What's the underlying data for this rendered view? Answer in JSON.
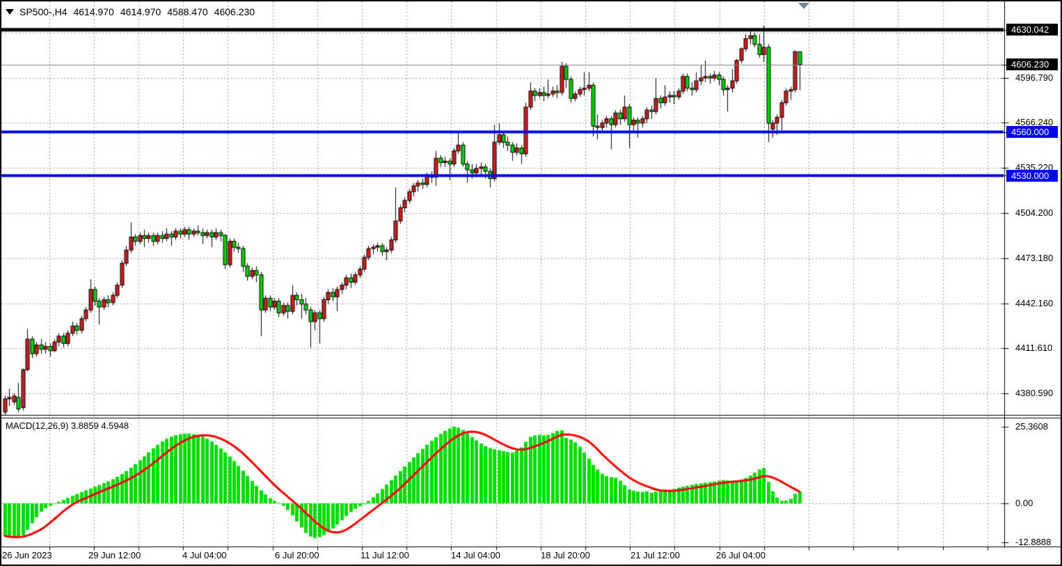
{
  "header": {
    "symbol_period": "SP500-,H4",
    "open": "4614.970",
    "high": "4614.970",
    "low": "4588.470",
    "close": "4606.230"
  },
  "indicator": {
    "label": "MACD(12,26,9)",
    "main_value": "3.8859",
    "signal_value": "4.5948",
    "axis_labels": [
      {
        "text": "25.3608",
        "value": 25.3608
      },
      {
        "text": "0.00",
        "value": 0
      },
      {
        "text": "-12.8888",
        "value": -12.8888
      }
    ]
  },
  "price_axis": {
    "labels": [
      {
        "text": "4630.042",
        "price": 4630.042,
        "style": "black"
      },
      {
        "text": "4606.230",
        "price": 4606.23,
        "style": "black"
      },
      {
        "text": "4596.790",
        "price": 4596.79,
        "style": "plain"
      },
      {
        "text": "4566.240",
        "price": 4566.24,
        "style": "plain"
      },
      {
        "text": "4560.000",
        "price": 4560.0,
        "style": "blue"
      },
      {
        "text": "4535.220",
        "price": 4535.22,
        "style": "plain"
      },
      {
        "text": "4530.000",
        "price": 4530.0,
        "style": "blue"
      },
      {
        "text": "4504.200",
        "price": 4504.2,
        "style": "plain"
      },
      {
        "text": "4473.180",
        "price": 4473.18,
        "style": "plain"
      },
      {
        "text": "4442.160",
        "price": 4442.16,
        "style": "plain"
      },
      {
        "text": "4411.610",
        "price": 4411.61,
        "style": "plain"
      },
      {
        "text": "4380.590",
        "price": 4380.59,
        "style": "plain"
      }
    ]
  },
  "time_axis": {
    "labels": [
      "26 Jun 2023",
      "29 Jun 12:00",
      "4 Jul 04:00",
      "6 Jul 20:00",
      "11 Jul 12:00",
      "14 Jul 04:00",
      "18 Jul 20:00",
      "21 Jul 12:00",
      "26 Jul 04:00"
    ]
  },
  "colors": {
    "background": "#ffffff",
    "grid": "#8d9aa8",
    "bull_candle": "#cc1e1e",
    "bear_candle": "#00d400",
    "candle_outline": "#000000",
    "resistance_line": "#000000",
    "support_line": "#0202f0",
    "last_price_line": "#808080",
    "macd_histogram": "#00dc00",
    "macd_signal": "#ff0000",
    "axis_text": "#000000"
  },
  "levels": {
    "black_line": 4630.042,
    "blue_lines": [
      4560.0,
      4530.0
    ],
    "last_price": 4606.23
  },
  "chart_data": {
    "type": "candlestick+macd",
    "symbol": "SP500-",
    "timeframe": "H4",
    "price_range_visible": [
      4365,
      4636
    ],
    "grid_prices": [
      4627.81,
      4596.79,
      4566.24,
      4535.22,
      4504.2,
      4473.18,
      4442.16,
      4411.61,
      4380.59
    ],
    "macd_range_visible": [
      -14.0,
      28.2
    ],
    "candles": [
      [
        4368,
        4379,
        4366,
        4377
      ],
      [
        4377,
        4384,
        4372,
        4378
      ],
      [
        4375,
        4381,
        4373,
        4379
      ],
      [
        4378,
        4388,
        4368,
        4370
      ],
      [
        4371,
        4398,
        4369,
        4397
      ],
      [
        4397,
        4425,
        4396,
        4418
      ],
      [
        4418,
        4420,
        4405,
        4408
      ],
      [
        4408,
        4416,
        4406,
        4414
      ],
      [
        4414,
        4418,
        4408,
        4411
      ],
      [
        4411,
        4416,
        4408,
        4413
      ],
      [
        4413,
        4415,
        4406,
        4410
      ],
      [
        4410,
        4418,
        4409,
        4416
      ],
      [
        4416,
        4422,
        4413,
        4420
      ],
      [
        4420,
        4422,
        4412,
        4415
      ],
      [
        4415,
        4424,
        4413,
        4422
      ],
      [
        4422,
        4430,
        4420,
        4427
      ],
      [
        4427,
        4429,
        4421,
        4424
      ],
      [
        4424,
        4434,
        4422,
        4432
      ],
      [
        4432,
        4440,
        4430,
        4438
      ],
      [
        4438,
        4459,
        4436,
        4452
      ],
      [
        4452,
        4454,
        4441,
        4444
      ],
      [
        4444,
        4446,
        4428,
        4440
      ],
      [
        4440,
        4447,
        4438,
        4445
      ],
      [
        4445,
        4448,
        4440,
        4443
      ],
      [
        4443,
        4450,
        4441,
        4448
      ],
      [
        4448,
        4457,
        4446,
        4455
      ],
      [
        4455,
        4472,
        4453,
        4470
      ],
      [
        4470,
        4482,
        4468,
        4479
      ],
      [
        4479,
        4498,
        4477,
        4488
      ],
      [
        4488,
        4490,
        4482,
        4485
      ],
      [
        4485,
        4491,
        4483,
        4489
      ],
      [
        4489,
        4493,
        4481,
        4487
      ],
      [
        4487,
        4491,
        4484,
        4489
      ],
      [
        4489,
        4491,
        4482,
        4485
      ],
      [
        4485,
        4491,
        4483,
        4489
      ],
      [
        4489,
        4492,
        4484,
        4487
      ],
      [
        4487,
        4494,
        4485,
        4490
      ],
      [
        4490,
        4492,
        4482,
        4488
      ],
      [
        4488,
        4494,
        4486,
        4492
      ],
      [
        4492,
        4494,
        4487,
        4490
      ],
      [
        4490,
        4495,
        4488,
        4493
      ],
      [
        4493,
        4495,
        4486,
        4490
      ],
      [
        4490,
        4494,
        4488,
        4492
      ],
      [
        4492,
        4496,
        4489,
        4491
      ],
      [
        4491,
        4494,
        4483,
        4489
      ],
      [
        4489,
        4493,
        4487,
        4491
      ],
      [
        4491,
        4493,
        4481,
        4488
      ],
      [
        4488,
        4494,
        4486,
        4491
      ],
      [
        4491,
        4493,
        4485,
        4489
      ],
      [
        4489,
        4490,
        4466,
        4469
      ],
      [
        4469,
        4487,
        4467,
        4485
      ],
      [
        4485,
        4487,
        4478,
        4481
      ],
      [
        4481,
        4484,
        4477,
        4480
      ],
      [
        4480,
        4482,
        4464,
        4468
      ],
      [
        4468,
        4470,
        4458,
        4461
      ],
      [
        4461,
        4467,
        4459,
        4465
      ],
      [
        4465,
        4468,
        4457,
        4462
      ],
      [
        4462,
        4464,
        4420,
        4438
      ],
      [
        4438,
        4448,
        4436,
        4446
      ],
      [
        4446,
        4448,
        4437,
        4440
      ],
      [
        4440,
        4446,
        4438,
        4444
      ],
      [
        4444,
        4446,
        4433,
        4436
      ],
      [
        4436,
        4443,
        4434,
        4441
      ],
      [
        4441,
        4443,
        4432,
        4437
      ],
      [
        4437,
        4455,
        4435,
        4448
      ],
      [
        4448,
        4450,
        4441,
        4445
      ],
      [
        4445,
        4449,
        4432,
        4442
      ],
      [
        4442,
        4446,
        4435,
        4438
      ],
      [
        4438,
        4440,
        4412,
        4430
      ],
      [
        4430,
        4438,
        4424,
        4436
      ],
      [
        4436,
        4438,
        4415,
        4432
      ],
      [
        4432,
        4447,
        4430,
        4445
      ],
      [
        4445,
        4452,
        4442,
        4450
      ],
      [
        4450,
        4453,
        4444,
        4447
      ],
      [
        4447,
        4454,
        4437,
        4452
      ],
      [
        4452,
        4457,
        4449,
        4455
      ],
      [
        4455,
        4462,
        4452,
        4460
      ],
      [
        4460,
        4463,
        4453,
        4457
      ],
      [
        4457,
        4464,
        4455,
        4462
      ],
      [
        4462,
        4468,
        4460,
        4466
      ],
      [
        4466,
        4476,
        4464,
        4474
      ],
      [
        4474,
        4482,
        4472,
        4480
      ],
      [
        4480,
        4483,
        4476,
        4481
      ],
      [
        4481,
        4484,
        4478,
        4482
      ],
      [
        4482,
        4484,
        4475,
        4478
      ],
      [
        4478,
        4481,
        4472,
        4479
      ],
      [
        4479,
        4488,
        4477,
        4486
      ],
      [
        4486,
        4522,
        4484,
        4499
      ],
      [
        4499,
        4510,
        4497,
        4508
      ],
      [
        4508,
        4515,
        4505,
        4513
      ],
      [
        4513,
        4521,
        4511,
        4519
      ],
      [
        4519,
        4525,
        4516,
        4523
      ],
      [
        4523,
        4527,
        4519,
        4525
      ],
      [
        4525,
        4528,
        4521,
        4524
      ],
      [
        4524,
        4532,
        4522,
        4530
      ],
      [
        4530,
        4533,
        4525,
        4529
      ],
      [
        4529,
        4547,
        4523,
        4542
      ],
      [
        4542,
        4544,
        4536,
        4539
      ],
      [
        4539,
        4543,
        4536,
        4540
      ],
      [
        4540,
        4542,
        4527,
        4538
      ],
      [
        4538,
        4549,
        4536,
        4547
      ],
      [
        4547,
        4560,
        4545,
        4551
      ],
      [
        4551,
        4553,
        4536,
        4538
      ],
      [
        4538,
        4540,
        4525,
        4534
      ],
      [
        4534,
        4538,
        4528,
        4532
      ],
      [
        4532,
        4538,
        4529,
        4535
      ],
      [
        4535,
        4539,
        4531,
        4536
      ],
      [
        4536,
        4538,
        4528,
        4533
      ],
      [
        4533,
        4535,
        4522,
        4528
      ],
      [
        4528,
        4565,
        4526,
        4553
      ],
      [
        4553,
        4566,
        4551,
        4558
      ],
      [
        4558,
        4560,
        4549,
        4553
      ],
      [
        4553,
        4557,
        4547,
        4551
      ],
      [
        4551,
        4553,
        4540,
        4546
      ],
      [
        4546,
        4552,
        4544,
        4549
      ],
      [
        4549,
        4551,
        4538,
        4545
      ],
      [
        4545,
        4580,
        4543,
        4577
      ],
      [
        4577,
        4594,
        4575,
        4588
      ],
      [
        4588,
        4590,
        4581,
        4585
      ],
      [
        4585,
        4590,
        4583,
        4587
      ],
      [
        4587,
        4591,
        4581,
        4585
      ],
      [
        4585,
        4596,
        4583,
        4586
      ],
      [
        4586,
        4591,
        4584,
        4588
      ],
      [
        4588,
        4592,
        4583,
        4587
      ],
      [
        4587,
        4608,
        4585,
        4605
      ],
      [
        4605,
        4607,
        4590,
        4596
      ],
      [
        4596,
        4598,
        4580,
        4583
      ],
      [
        4583,
        4588,
        4581,
        4586
      ],
      [
        4586,
        4591,
        4584,
        4589
      ],
      [
        4589,
        4601,
        4585,
        4590
      ],
      [
        4590,
        4601,
        4588,
        4592
      ],
      [
        4592,
        4594,
        4557,
        4564
      ],
      [
        4564,
        4572,
        4555,
        4563
      ],
      [
        4563,
        4568,
        4559,
        4566
      ],
      [
        4566,
        4571,
        4563,
        4569
      ],
      [
        4569,
        4571,
        4548,
        4565
      ],
      [
        4565,
        4575,
        4563,
        4573
      ],
      [
        4573,
        4575,
        4565,
        4569
      ],
      [
        4569,
        4585,
        4567,
        4577
      ],
      [
        4577,
        4579,
        4549,
        4565
      ],
      [
        4565,
        4570,
        4560,
        4568
      ],
      [
        4568,
        4570,
        4556,
        4566
      ],
      [
        4566,
        4571,
        4563,
        4569
      ],
      [
        4569,
        4577,
        4566,
        4575
      ],
      [
        4575,
        4578,
        4569,
        4574
      ],
      [
        4574,
        4597,
        4572,
        4583
      ],
      [
        4583,
        4585,
        4576,
        4580
      ],
      [
        4580,
        4592,
        4578,
        4584
      ],
      [
        4584,
        4588,
        4580,
        4585
      ],
      [
        4585,
        4588,
        4579,
        4584
      ],
      [
        4584,
        4590,
        4582,
        4588
      ],
      [
        4588,
        4600,
        4586,
        4598
      ],
      [
        4598,
        4600,
        4588,
        4590
      ],
      [
        4590,
        4594,
        4585,
        4589
      ],
      [
        4589,
        4601,
        4587,
        4595
      ],
      [
        4595,
        4606,
        4592,
        4597
      ],
      [
        4597,
        4609,
        4594,
        4598
      ],
      [
        4598,
        4600,
        4593,
        4597
      ],
      [
        4597,
        4602,
        4595,
        4599
      ],
      [
        4599,
        4601,
        4592,
        4596
      ],
      [
        4596,
        4598,
        4585,
        4589
      ],
      [
        4589,
        4592,
        4574,
        4590
      ],
      [
        4590,
        4603,
        4587,
        4595
      ],
      [
        4595,
        4610,
        4593,
        4609
      ],
      [
        4609,
        4618,
        4607,
        4617
      ],
      [
        4617,
        4627,
        4615,
        4624
      ],
      [
        4624,
        4629,
        4620,
        4626
      ],
      [
        4626,
        4628,
        4618,
        4620
      ],
      [
        4620,
        4627,
        4611,
        4613
      ],
      [
        4613,
        4633,
        4608,
        4618
      ],
      [
        4618,
        4620,
        4553,
        4566
      ],
      [
        4562,
        4568,
        4556,
        4566
      ],
      [
        4566,
        4572,
        4558,
        4570
      ],
      [
        4570,
        4582,
        4559,
        4580
      ],
      [
        4580,
        4590,
        4578,
        4588
      ],
      [
        4588,
        4591,
        4582,
        4589
      ],
      [
        4589,
        4616,
        4587,
        4615
      ],
      [
        4614.97,
        4614.97,
        4588.47,
        4606.23
      ]
    ],
    "macd_histogram": [
      -10.8,
      -11.3,
      -11.5,
      -11.2,
      -10.6,
      -8.8,
      -6.6,
      -4.6,
      -2.8,
      -1.6,
      -0.8,
      -0.2,
      0.5,
      1.1,
      1.8,
      2.5,
      3.1,
      3.7,
      4.3,
      4.9,
      5.5,
      6.1,
      6.7,
      7.3,
      8.0,
      8.8,
      9.7,
      10.7,
      11.8,
      13.0,
      14.3,
      15.6,
      16.9,
      18.2,
      19.4,
      20.5,
      21.4,
      22.1,
      22.6,
      22.9,
      23.1,
      23.1,
      22.9,
      22.6,
      22.1,
      21.4,
      20.5,
      19.4,
      18.2,
      16.9,
      15.5,
      14.0,
      12.4,
      10.8,
      9.1,
      7.4,
      5.8,
      4.3,
      2.9,
      1.7,
      0.8,
      0.2,
      -0.8,
      -2.2,
      -4.0,
      -6.0,
      -8.0,
      -9.8,
      -11.0,
      -11.5,
      -11.2,
      -10.5,
      -9.5,
      -8.3,
      -7.0,
      -5.6,
      -4.2,
      -2.9,
      -1.8,
      -0.9,
      -0.3,
      0.8,
      2.0,
      3.3,
      4.7,
      6.2,
      7.7,
      9.2,
      10.7,
      12.2,
      13.7,
      15.2,
      16.6,
      18.0,
      19.4,
      20.7,
      21.9,
      23.0,
      24.0,
      24.8,
      25.4,
      25.1,
      24.3,
      23.2,
      22.0,
      20.9,
      19.8,
      18.9,
      18.3,
      17.9,
      17.6,
      17.3,
      17.0,
      16.8,
      17.5,
      18.5,
      20.4,
      22.0,
      22.5,
      22.7,
      22.5,
      22.7,
      23.3,
      24.0,
      24.2,
      21.7,
      21.1,
      20.2,
      18.8,
      16.8,
      14.8,
      12.7,
      11.2,
      9.8,
      9.0,
      8.7,
      8.5,
      7.5,
      6.0,
      4.6,
      4.2,
      3.9,
      3.8,
      4.0,
      3.6,
      3.9,
      4.5,
      4.6,
      4.5,
      4.8,
      5.2,
      5.5,
      5.8,
      6.1,
      6.4,
      6.6,
      6.8,
      7.0,
      7.2,
      7.5,
      7.7,
      7.6,
      7.5,
      7.5,
      7.9,
      8.4,
      9.2,
      10.2,
      11.2,
      11.7,
      7.1,
      4.0,
      1.9,
      0.8,
      0.9,
      1.5,
      3.1,
      3.9
    ],
    "macd_main_current": 3.8859,
    "macd_signal_current": 4.5948
  }
}
